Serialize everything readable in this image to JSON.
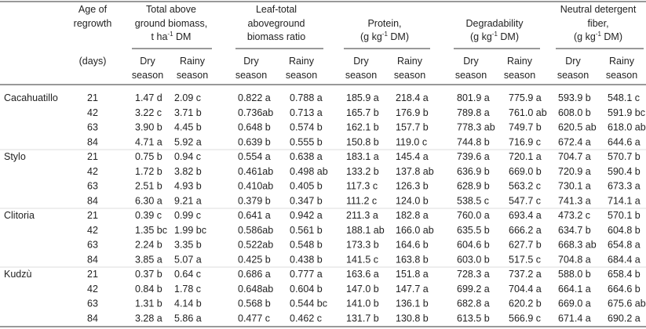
{
  "table": {
    "header": {
      "age": [
        "Age of",
        "regrowth",
        "(days)"
      ],
      "groups": [
        {
          "lines": [
            "Total above",
            "ground biomass,"
          ],
          "unit": {
            "text": "t ha",
            "sup": "-1",
            "after": " DM"
          }
        },
        {
          "lines": [
            "Leaf-total",
            "aboveground",
            "biomass ratio"
          ]
        },
        {
          "lines": [
            "Protein,"
          ],
          "unit": {
            "text": "(g kg",
            "sup": "-1",
            "after": " DM)"
          }
        },
        {
          "lines": [
            "Degradability"
          ],
          "unit": {
            "text": "(g kg",
            "sup": "-1",
            "after": " DM)"
          }
        },
        {
          "lines": [
            "Neutral detergent",
            "fiber,"
          ],
          "unit": {
            "text": "(g kg",
            "sup": "-1",
            "after": " DM)"
          }
        }
      ],
      "sub": [
        [
          "Dry",
          "season"
        ],
        [
          "Rainy",
          "season"
        ]
      ]
    },
    "groups": [
      {
        "name": "Cacahuatillo",
        "rows": [
          [
            "21",
            "1.47 d",
            "2.09 c",
            "0.822 a",
            "0.788 a",
            "185.9 a",
            "218.4 a",
            "801.9 a",
            "775.9 a",
            "593.9 b",
            "548.1 c"
          ],
          [
            "42",
            "3.22 c",
            "3.71 b",
            "0.736ab",
            "0.713 a",
            "165.7 b",
            "176.9 b",
            "789.8 a",
            "761.0 ab",
            "608.0 b",
            "591.9 bc"
          ],
          [
            "63",
            "3.90 b",
            "4.45 b",
            "0.648 b",
            "0.574 b",
            "162.1 b",
            "157.7 b",
            "778.3 ab",
            "749.7 b",
            "620.5 ab",
            "618.0 ab"
          ],
          [
            "84",
            "4.71 a",
            "5.92 a",
            "0.639 b",
            "0.555 b",
            "150.8 b",
            "119.0 c",
            "744.8 b",
            "716.9 c",
            "672.4 a",
            "644.6 a"
          ]
        ]
      },
      {
        "name": "Stylo",
        "rows": [
          [
            "21",
            "0.75 b",
            "0.94 c",
            "0.554 a",
            "0.638 a",
            "183.1 a",
            "145.4 a",
            "739.6 a",
            "720.1 a",
            "704.7 a",
            "570.7 b"
          ],
          [
            "42",
            "1.72 b",
            "3.82 b",
            "0.461ab",
            "0.498 ab",
            "133.2 b",
            "137.8 ab",
            "636.9 b",
            "669.0 b",
            "720.9 a",
            "590.4 b"
          ],
          [
            "63",
            "2.51 b",
            "4.93 b",
            "0.410ab",
            "0.405 b",
            "117.3 c",
            "126.3 b",
            "628.9 b",
            "563.2 c",
            "730.1 a",
            "673.3 a"
          ],
          [
            "84",
            "6.30 a",
            "9.21 a",
            "0.379 b",
            "0.347 b",
            "111.2 c",
            "124.0 b",
            "538.5 c",
            "547.7 c",
            "741.3 a",
            "714.1 a"
          ]
        ]
      },
      {
        "name": "Clitoria",
        "rows": [
          [
            "21",
            "0.39 c",
            "0.99 c",
            "0.641 a",
            "0.942 a",
            "211.3 a",
            "182.8 a",
            "760.0 a",
            "693.4 a",
            "473.2 c",
            "570.1 b"
          ],
          [
            "42",
            "1.35 bc",
            "1.99 bc",
            "0.586ab",
            "0.561 b",
            "188.1 ab",
            "166.0 ab",
            "635.5 b",
            "666.2 a",
            "634.7 b",
            "604.8 b"
          ],
          [
            "63",
            "2.24 b",
            "3.35 b",
            "0.522ab",
            "0.548 b",
            "173.3 b",
            "164.6 b",
            "604.6 b",
            "627.7 b",
            "668.3 ab",
            "654.8 a"
          ],
          [
            "84",
            "3.85 a",
            "5.07 a",
            "0.425 b",
            "0.438 b",
            "141.5 c",
            "163.8 b",
            "603.0 b",
            "517.5 c",
            "704.8 a",
            "684.4 a"
          ]
        ]
      },
      {
        "name": "Kudzù",
        "rows": [
          [
            "21",
            "0.37 b",
            "0.64 c",
            "0.686 a",
            "0.777 a",
            "163.6 a",
            "151.8 a",
            "728.3 a",
            "737.2 a",
            "588.0 b",
            "658.4 b"
          ],
          [
            "42",
            "0.84 b",
            "1.78 c",
            "0.648ab",
            "0.604 b",
            "147.0 b",
            "147.7 a",
            "699.2 a",
            "704.4 a",
            "664.1 a",
            "664.6 b"
          ],
          [
            "63",
            "1.31 b",
            "4.14 b",
            "0.568 b",
            "0.544 bc",
            "141.0 b",
            "136.1 b",
            "682.8 a",
            "620.2 b",
            "669.0 a",
            "675.6 ab"
          ],
          [
            "84",
            "3.28 a",
            "5.86 a",
            "0.477 c",
            "0.462 c",
            "131.7 b",
            "130.8 b",
            "613.5 b",
            "566.9 c",
            "671.4 a",
            "690.2 a"
          ]
        ]
      }
    ]
  }
}
